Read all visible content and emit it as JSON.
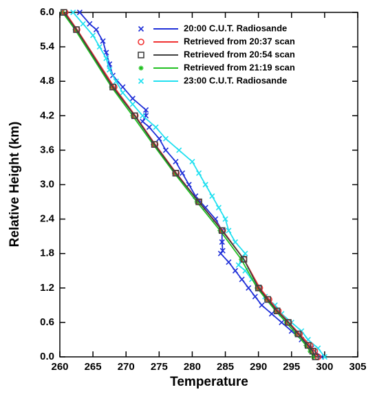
{
  "chart_data": {
    "type": "line",
    "xlabel": "Temperature",
    "ylabel": "Relative Height (km)",
    "xlim": [
      260,
      305
    ],
    "xticks": [
      260,
      265,
      270,
      275,
      280,
      285,
      290,
      295,
      300,
      305
    ],
    "ylim": [
      0,
      6
    ],
    "yticks": [
      {
        "value": 0,
        "label": "0.0"
      },
      0.6,
      1.2,
      1.8,
      2.4,
      {
        "value": 3,
        "label": "3.0"
      },
      3.6,
      4.2,
      4.8,
      5.4,
      {
        "value": 6,
        "label": "6.0"
      }
    ],
    "legend": "upper right",
    "series": [
      {
        "name": "20:00 C.U.T. Radiosande",
        "color": "#1f2fd8",
        "marker": "x",
        "x": [
          299.5,
          298,
          296.5,
          295,
          293.5,
          292,
          290.5,
          289.5,
          288.5,
          287.5,
          286.5,
          285.5,
          284.3,
          284.6,
          284.5,
          284.5,
          283.5,
          282,
          280.5,
          279.5,
          278.5,
          277.5,
          276,
          275,
          273.5,
          272.5,
          273,
          273,
          271,
          269.5,
          268,
          267.5,
          267,
          266.5,
          265.5,
          264.5,
          263
        ],
        "values": [
          0,
          0.15,
          0.3,
          0.45,
          0.6,
          0.75,
          0.9,
          1.05,
          1.2,
          1.35,
          1.5,
          1.65,
          1.8,
          1.85,
          2.0,
          2.2,
          2.4,
          2.6,
          2.8,
          3.0,
          3.2,
          3.4,
          3.6,
          3.8,
          4.0,
          4.1,
          4.2,
          4.3,
          4.5,
          4.7,
          4.9,
          5.1,
          5.3,
          5.5,
          5.7,
          5.8,
          6.0
        ]
      },
      {
        "name": "Retrieved from 20:37 scan",
        "color": "#f03030",
        "marker": "circle",
        "x": [
          299,
          298.5,
          297.8,
          296.2,
          294.6,
          293,
          291.6,
          290.2,
          287.8,
          284.6,
          281,
          277.6,
          274.4,
          271.4,
          268.2,
          262.6,
          260.8
        ],
        "values": [
          0,
          0.1,
          0.2,
          0.4,
          0.6,
          0.8,
          1.0,
          1.2,
          1.7,
          2.2,
          2.7,
          3.2,
          3.7,
          4.2,
          4.7,
          5.7,
          6.0
        ]
      },
      {
        "name": "Retrieved from 20:54 scan",
        "color": "#404040",
        "marker": "square",
        "x": [
          298.6,
          298.2,
          297.5,
          296,
          294.5,
          292.8,
          291.4,
          290,
          287.8,
          284.5,
          281,
          277.5,
          274.3,
          271.3,
          268,
          262.5,
          260.6
        ],
        "values": [
          0,
          0.1,
          0.2,
          0.4,
          0.6,
          0.8,
          1.0,
          1.2,
          1.7,
          2.2,
          2.7,
          3.2,
          3.7,
          4.2,
          4.7,
          5.7,
          6.0
        ]
      },
      {
        "name": "Retrieved from 21:19 scan",
        "color": "#20c020",
        "marker": "star",
        "x": [
          298.3,
          297.8,
          297.2,
          295.7,
          294.2,
          292.6,
          291.2,
          289.8,
          287.4,
          284.2,
          280.7,
          277.3,
          274.1,
          271,
          267.8,
          262.3,
          260.4
        ],
        "values": [
          0,
          0.1,
          0.2,
          0.4,
          0.6,
          0.8,
          1.0,
          1.2,
          1.7,
          2.2,
          2.7,
          3.2,
          3.7,
          4.2,
          4.7,
          5.7,
          6.0
        ]
      },
      {
        "name": "23:00 C.U.T. Radiosande",
        "color": "#20e0f0",
        "marker": "x",
        "x": [
          300,
          299,
          297.5,
          296.5,
          295,
          293.5,
          292.5,
          291,
          290,
          289,
          288,
          287,
          287.5,
          288,
          286.5,
          285.5,
          285,
          284,
          283,
          282,
          281,
          280,
          278,
          276,
          274.5,
          272.5,
          271,
          269.5,
          268.5,
          267.5,
          267,
          266,
          265,
          263.5,
          262
        ],
        "values": [
          0,
          0.15,
          0.3,
          0.45,
          0.6,
          0.75,
          0.9,
          1.05,
          1.2,
          1.35,
          1.5,
          1.6,
          1.7,
          1.8,
          2.0,
          2.2,
          2.4,
          2.6,
          2.8,
          3.0,
          3.2,
          3.4,
          3.6,
          3.8,
          4.0,
          4.2,
          4.4,
          4.6,
          4.8,
          5.0,
          5.2,
          5.4,
          5.6,
          5.8,
          6.0
        ]
      }
    ]
  }
}
